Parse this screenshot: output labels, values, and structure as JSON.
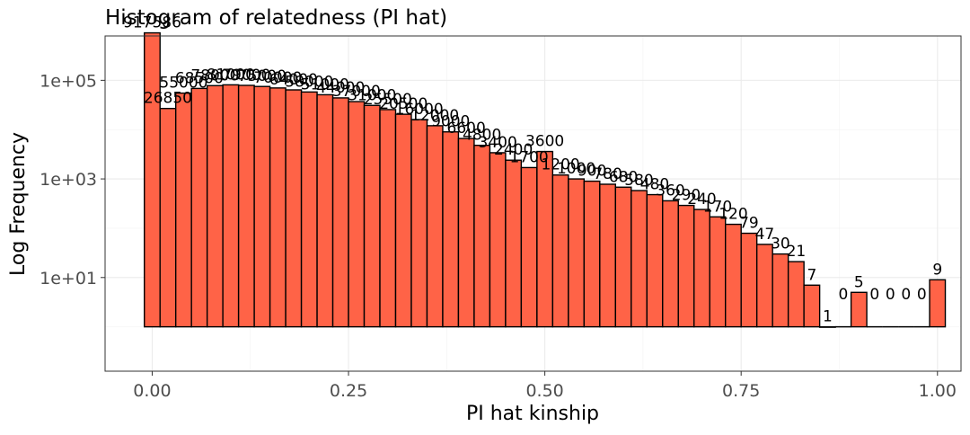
{
  "chart_data": {
    "type": "bar",
    "title": "Histogram of relatedness (PI hat)",
    "xlabel": "PI hat kinship",
    "ylabel": "Log Frequency",
    "xlim": [
      -0.06,
      1.03
    ],
    "ylim_log10": [
      -0.9,
      5.9
    ],
    "grid": true,
    "bar_color": "#FF6347",
    "bar_outline": "#000000",
    "bin_width": 0.02,
    "x": [
      0.0,
      0.02,
      0.04,
      0.06,
      0.08,
      0.1,
      0.12,
      0.14,
      0.16,
      0.18,
      0.2,
      0.22,
      0.24,
      0.26,
      0.28,
      0.3,
      0.32,
      0.34,
      0.36,
      0.38,
      0.4,
      0.42,
      0.44,
      0.46,
      0.48,
      0.5,
      0.52,
      0.54,
      0.56,
      0.58,
      0.6,
      0.62,
      0.64,
      0.66,
      0.68,
      0.7,
      0.72,
      0.74,
      0.76,
      0.78,
      0.8,
      0.82,
      0.84,
      0.86,
      0.88,
      0.9,
      0.92,
      0.94,
      0.96,
      0.98,
      1.0
    ],
    "values": [
      917586,
      26850,
      55000,
      68500,
      78000,
      81000,
      79000,
      75000,
      70000,
      64000,
      58000,
      51000,
      44000,
      37000,
      31000,
      25500,
      20500,
      16000,
      12000,
      9000,
      6600,
      4800,
      3400,
      2400,
      1700,
      3600,
      1200,
      1000,
      900,
      780,
      680,
      580,
      480,
      360,
      290,
      240,
      170,
      120,
      79,
      47,
      30,
      21,
      7,
      1,
      0,
      5,
      0,
      0,
      0,
      0,
      9
    ],
    "labels": [
      "917586",
      "26850",
      "55000",
      "68500",
      "78000",
      "81000",
      "79000",
      "75000",
      "70000",
      "64000",
      "58000",
      "51000",
      "44000",
      "37000",
      "31000",
      "25500",
      "20500",
      "16000",
      "12000",
      "9000",
      "6600",
      "4800",
      "3400",
      "2400",
      "1700",
      "3600",
      "1200",
      "1000",
      "900",
      "780",
      "680",
      "580",
      "480",
      "360",
      "290",
      "240",
      "170",
      "120",
      "79",
      "47",
      "30",
      "21",
      "7",
      "1",
      "0",
      "5",
      "0",
      "0",
      "0",
      "0",
      "9"
    ],
    "x_ticks": [
      {
        "value": 0.0,
        "label": "0.00"
      },
      {
        "value": 0.25,
        "label": "0.25"
      },
      {
        "value": 0.5,
        "label": "0.50"
      },
      {
        "value": 0.75,
        "label": "0.75"
      },
      {
        "value": 1.0,
        "label": "1.00"
      }
    ],
    "y_ticks": [
      {
        "value": 10,
        "label": "1e+01"
      },
      {
        "value": 1000,
        "label": "1e+03"
      },
      {
        "value": 100000,
        "label": "1e+05"
      }
    ]
  }
}
